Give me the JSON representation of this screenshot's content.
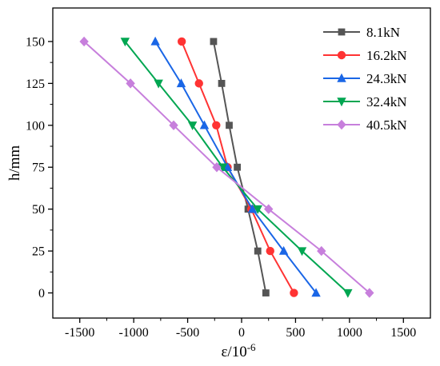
{
  "chart_data": {
    "type": "line",
    "title": "",
    "xlabel": "ε/10",
    "xlabel_exponent": "-6",
    "ylabel": "h/mm",
    "xlim": [
      -1750,
      1750
    ],
    "ylim": [
      -15,
      170
    ],
    "x_ticks": [
      -1500,
      -1000,
      -500,
      0,
      500,
      1000,
      1500
    ],
    "y_ticks": [
      0,
      25,
      50,
      75,
      100,
      125,
      150
    ],
    "legend_position": "top-right",
    "grid": false,
    "y": [
      0,
      25,
      50,
      75,
      100,
      125,
      150
    ],
    "series": [
      {
        "name": "8.1kN",
        "color": "#555555",
        "marker": "square",
        "x": [
          225,
          150,
          60,
          -40,
          -115,
          -185,
          -260
        ]
      },
      {
        "name": "16.2kN",
        "color": "#ff3333",
        "marker": "circle",
        "x": [
          485,
          265,
          90,
          -130,
          -235,
          -395,
          -555
        ]
      },
      {
        "name": "24.3kN",
        "color": "#1a66e6",
        "marker": "triangle-up",
        "x": [
          690,
          390,
          100,
          -130,
          -345,
          -560,
          -800
        ]
      },
      {
        "name": "32.4kN",
        "color": "#00a651",
        "marker": "triangle-down",
        "x": [
          985,
          560,
          150,
          -175,
          -455,
          -770,
          -1080
        ]
      },
      {
        "name": "40.5kN",
        "color": "#c77fdc",
        "marker": "diamond",
        "x": [
          1185,
          740,
          250,
          -230,
          -630,
          -1030,
          -1460
        ]
      }
    ]
  }
}
